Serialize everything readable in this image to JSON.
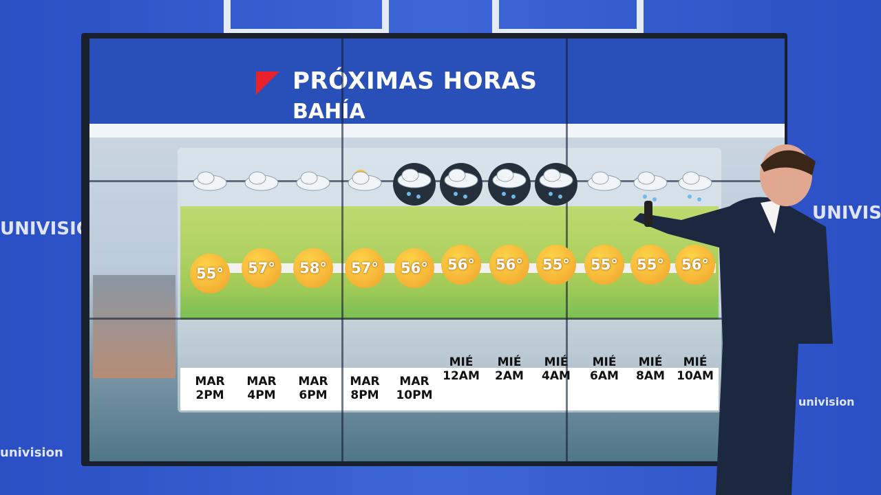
{
  "header": {
    "title": "PRÓXIMAS HORAS",
    "subtitle": "BAHÍA"
  },
  "forecast": [
    {
      "temp": "55°",
      "day": "MAR",
      "time": "2PM"
    },
    {
      "temp": "57°",
      "day": "MAR",
      "time": "4PM"
    },
    {
      "temp": "58°",
      "day": "MAR",
      "time": "6PM"
    },
    {
      "temp": "57°",
      "day": "MAR",
      "time": "8PM"
    },
    {
      "temp": "56°",
      "day": "MAR",
      "time": "10PM"
    },
    {
      "temp": "56°",
      "day": "MIÉ",
      "time": "12AM"
    },
    {
      "temp": "56°",
      "day": "MIÉ",
      "time": "2AM"
    },
    {
      "temp": "55°",
      "day": "MIÉ",
      "time": "4AM"
    },
    {
      "temp": "55°",
      "day": "MIÉ",
      "time": "6AM"
    },
    {
      "temp": "55°",
      "day": "MIÉ",
      "time": "8AM"
    },
    {
      "temp": "56°",
      "day": "MIÉ",
      "time": "10AM"
    }
  ],
  "wall": {
    "logo_left": "UNIVISION",
    "logo_bottom_left": "univision",
    "logo_right": "UNIVISION",
    "logo_bottom_right": "univision"
  }
}
